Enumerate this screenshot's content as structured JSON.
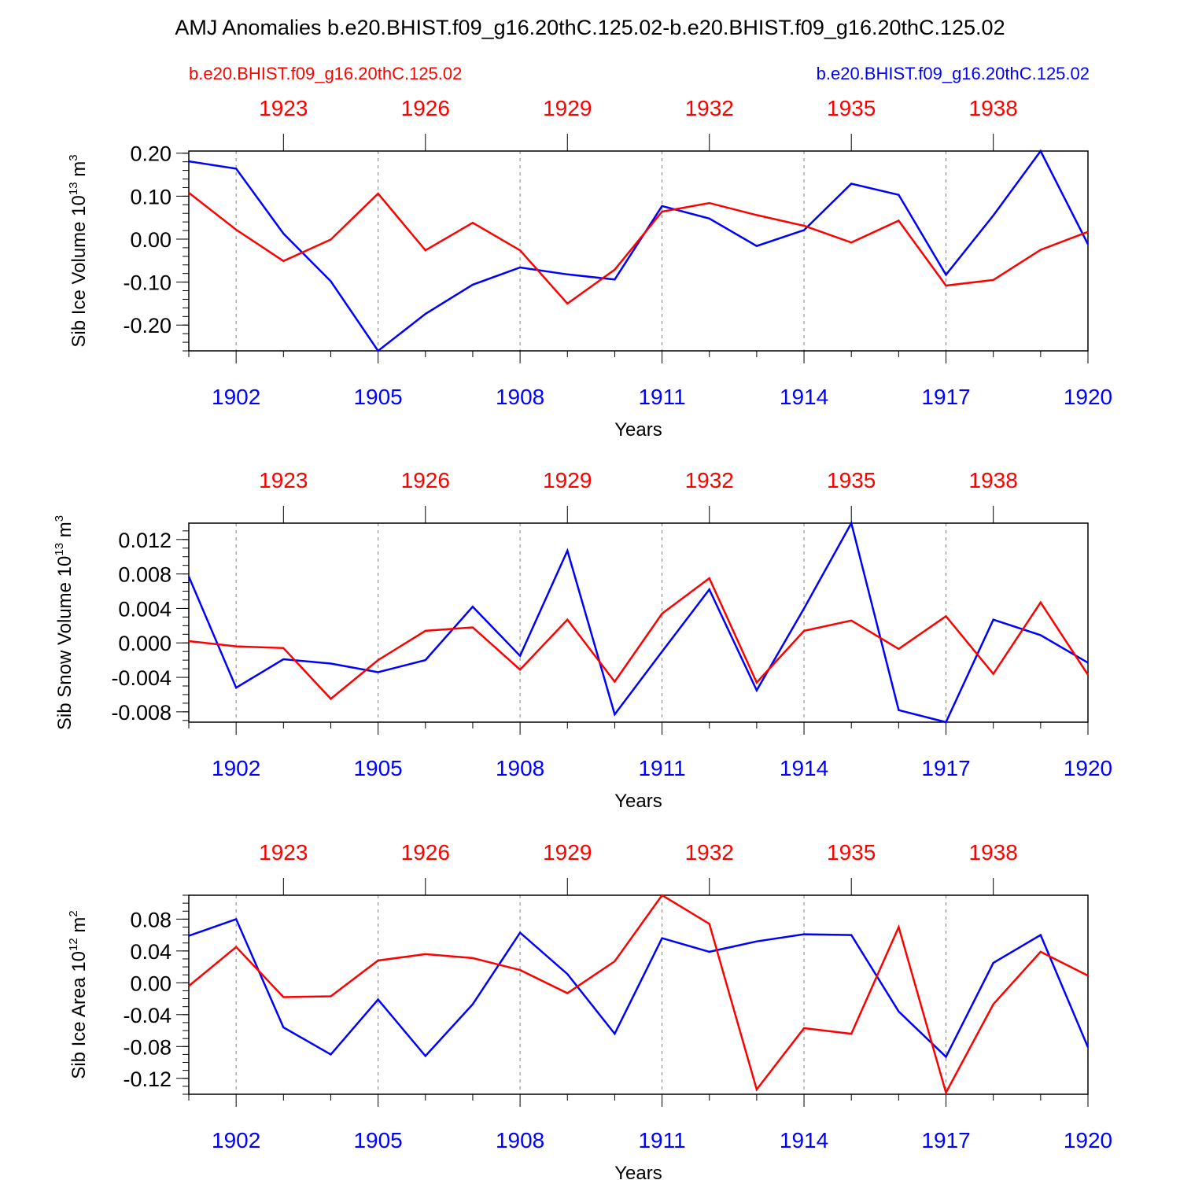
{
  "figure": {
    "title": "AMJ Anomalies b.e20.BHIST.f09_g16.20thC.125.02-b.e20.BHIST.f09_g16.20thC.125.02",
    "left_label": "b.e20.BHIST.f09_g16.20thC.125.02",
    "right_label": "b.e20.BHIST.f09_g16.20thC.125.02",
    "colors": {
      "red": "#ff0000",
      "blue": "#0000ff",
      "axis": "#000000",
      "grid": "#808080"
    }
  },
  "chart_data": [
    {
      "type": "line",
      "ylabel": "Sib Ice Volume 10",
      "ylabel_exp": "13",
      "ylabel_unit": " m",
      "ylabel_unit_exp": "3",
      "xlabel": "Years",
      "xlim": [
        1901,
        1920
      ],
      "ylim": [
        -0.26,
        0.205
      ],
      "yticks": [
        0.2,
        0.1,
        0.0,
        -0.1,
        -0.2
      ],
      "ytick_labels": [
        "0.20",
        "0.10",
        "0.00",
        "-0.10",
        "-0.20"
      ],
      "yminor_step": 0.02,
      "bottom_ticks": [
        1902,
        1905,
        1908,
        1911,
        1914,
        1917,
        1920
      ],
      "bottom_tick_labels": [
        "1902",
        "1905",
        "1908",
        "1911",
        "1914",
        "1917",
        "1920"
      ],
      "top_tick_labels": [
        "1923",
        "1926",
        "1929",
        "1932",
        "1935",
        "1938"
      ],
      "x": [
        1901,
        1902,
        1903,
        1904,
        1905,
        1906,
        1907,
        1908,
        1909,
        1910,
        1911,
        1912,
        1913,
        1914,
        1915,
        1916,
        1917,
        1918,
        1919,
        1920
      ],
      "series": [
        {
          "name": "blue",
          "values": [
            0.181,
            0.164,
            0.013,
            -0.098,
            -0.26,
            -0.174,
            -0.106,
            -0.066,
            -0.082,
            -0.094,
            0.077,
            0.048,
            -0.016,
            0.021,
            0.129,
            0.103,
            -0.083,
            0.055,
            0.205,
            -0.012
          ]
        },
        {
          "name": "red",
          "values": [
            0.108,
            0.022,
            -0.051,
            -0.001,
            0.106,
            -0.026,
            0.038,
            -0.026,
            -0.15,
            -0.071,
            0.064,
            0.084,
            0.056,
            0.031,
            -0.008,
            0.043,
            -0.108,
            -0.095,
            -0.025,
            0.017
          ]
        }
      ]
    },
    {
      "type": "line",
      "ylabel": "Sib Snow Volume 10",
      "ylabel_exp": "13",
      "ylabel_unit": " m",
      "ylabel_unit_exp": "3",
      "xlabel": "Years",
      "xlim": [
        1901,
        1920
      ],
      "ylim": [
        -0.0092,
        0.0139
      ],
      "yticks": [
        0.012,
        0.008,
        0.004,
        0.0,
        -0.004,
        -0.008
      ],
      "ytick_labels": [
        "0.012",
        "0.008",
        "0.004",
        "0.000",
        "-0.004",
        "-0.008"
      ],
      "yminor_step": 0.001,
      "bottom_ticks": [
        1902,
        1905,
        1908,
        1911,
        1914,
        1917,
        1920
      ],
      "bottom_tick_labels": [
        "1902",
        "1905",
        "1908",
        "1911",
        "1914",
        "1917",
        "1920"
      ],
      "top_tick_labels": [
        "1923",
        "1926",
        "1929",
        "1932",
        "1935",
        "1938"
      ],
      "x": [
        1901,
        1902,
        1903,
        1904,
        1905,
        1906,
        1907,
        1908,
        1909,
        1910,
        1911,
        1912,
        1913,
        1914,
        1915,
        1916,
        1917,
        1918,
        1919,
        1920
      ],
      "series": [
        {
          "name": "blue",
          "values": [
            0.0077,
            -0.0052,
            -0.0019,
            -0.0024,
            -0.0034,
            -0.002,
            0.0042,
            -0.0015,
            0.0107,
            -0.0083,
            -0.001,
            0.0062,
            -0.0055,
            0.004,
            0.0139,
            -0.0078,
            -0.0092,
            0.0027,
            0.0009,
            -0.0023
          ]
        },
        {
          "name": "red",
          "values": [
            0.0002,
            -0.0004,
            -0.0006,
            -0.0065,
            -0.002,
            0.0014,
            0.0018,
            -0.0031,
            0.0027,
            -0.0045,
            0.0034,
            0.0075,
            -0.0046,
            0.0014,
            0.0026,
            -0.0007,
            0.0031,
            -0.0036,
            0.0047,
            -0.0037
          ]
        }
      ]
    },
    {
      "type": "line",
      "ylabel": "Sib Ice Area 10",
      "ylabel_exp": "12",
      "ylabel_unit": " m",
      "ylabel_unit_exp": "2",
      "xlabel": "Years",
      "xlim": [
        1901,
        1920
      ],
      "ylim": [
        -0.14,
        0.11
      ],
      "yticks": [
        0.08,
        0.04,
        0.0,
        -0.04,
        -0.08,
        -0.12
      ],
      "ytick_labels": [
        "0.08",
        "0.04",
        "0.00",
        "-0.04",
        "-0.08",
        "-0.12"
      ],
      "yminor_step": 0.01,
      "bottom_ticks": [
        1902,
        1905,
        1908,
        1911,
        1914,
        1917,
        1920
      ],
      "bottom_tick_labels": [
        "1902",
        "1905",
        "1908",
        "1911",
        "1914",
        "1917",
        "1920"
      ],
      "top_tick_labels": [
        "1923",
        "1926",
        "1929",
        "1932",
        "1935",
        "1938"
      ],
      "x": [
        1901,
        1902,
        1903,
        1904,
        1905,
        1906,
        1907,
        1908,
        1909,
        1910,
        1911,
        1912,
        1913,
        1914,
        1915,
        1916,
        1917,
        1918,
        1919,
        1920
      ],
      "series": [
        {
          "name": "blue",
          "values": [
            0.059,
            0.08,
            -0.056,
            -0.09,
            -0.021,
            -0.092,
            -0.027,
            0.063,
            0.011,
            -0.064,
            0.056,
            0.039,
            0.052,
            0.061,
            0.06,
            -0.036,
            -0.093,
            0.025,
            0.06,
            -0.081
          ]
        },
        {
          "name": "red",
          "values": [
            -0.004,
            0.045,
            -0.018,
            -0.017,
            0.028,
            0.036,
            0.031,
            0.016,
            -0.013,
            0.027,
            0.11,
            0.074,
            -0.134,
            -0.057,
            -0.064,
            0.07,
            -0.138,
            -0.027,
            0.039,
            0.009
          ]
        }
      ]
    }
  ]
}
